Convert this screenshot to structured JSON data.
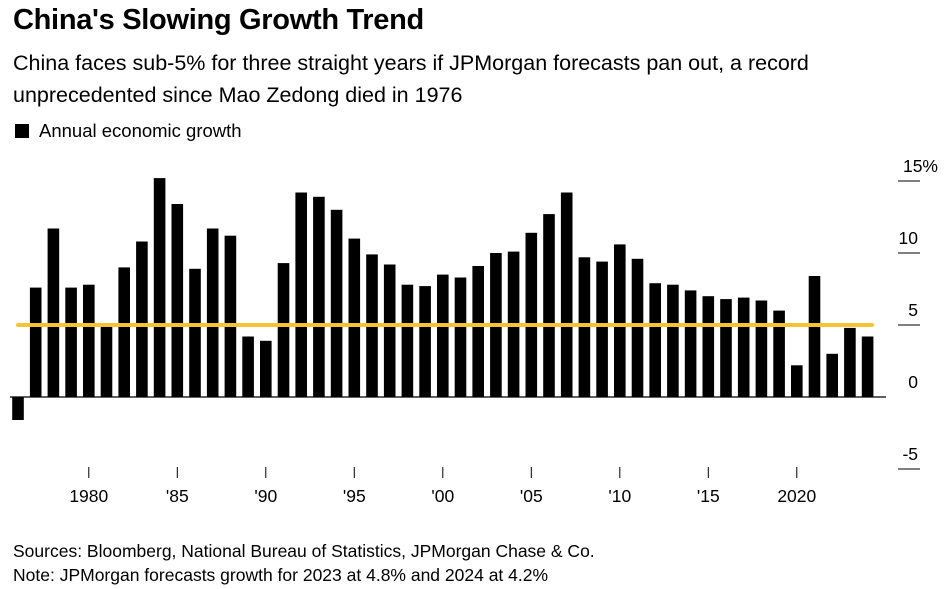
{
  "header": {
    "title": "China's Slowing Growth Trend",
    "subtitle": "China faces sub-5% for three straight years if JPMorgan forecasts pan out, a record unprecedented since Mao Zedong died in 1976"
  },
  "legend": {
    "label": "Annual economic growth"
  },
  "footer": {
    "sources": "Sources: Bloomberg, National Bureau of Statistics, JPMorgan Chase & Co.",
    "note": "Note: JPMorgan forecasts growth for 2023 at 4.8% and 2024 at 4.2%"
  },
  "chart_data": {
    "type": "bar",
    "x": [
      1976,
      1977,
      1978,
      1979,
      1980,
      1981,
      1982,
      1983,
      1984,
      1985,
      1986,
      1987,
      1988,
      1989,
      1990,
      1991,
      1992,
      1993,
      1994,
      1995,
      1996,
      1997,
      1998,
      1999,
      2000,
      2001,
      2002,
      2003,
      2004,
      2005,
      2006,
      2007,
      2008,
      2009,
      2010,
      2011,
      2012,
      2013,
      2014,
      2015,
      2016,
      2017,
      2018,
      2019,
      2020,
      2021,
      2022,
      2023,
      2024
    ],
    "values": [
      -1.6,
      7.6,
      11.7,
      7.6,
      7.8,
      5.1,
      9.0,
      10.8,
      15.2,
      13.4,
      8.9,
      11.7,
      11.2,
      4.2,
      3.9,
      9.3,
      14.2,
      13.9,
      13.0,
      11.0,
      9.9,
      9.2,
      7.8,
      7.7,
      8.5,
      8.3,
      9.1,
      10.0,
      10.1,
      11.4,
      12.7,
      14.2,
      9.7,
      9.4,
      10.6,
      9.6,
      7.9,
      7.8,
      7.4,
      7.0,
      6.8,
      6.9,
      6.7,
      6.0,
      2.2,
      8.4,
      3.0,
      4.8,
      4.2
    ],
    "reference_line": {
      "value": 5,
      "color": "#f5c436"
    },
    "bar_color": "#000000",
    "y_ticks": [
      "15%",
      "10",
      "5",
      "0",
      "-5"
    ],
    "y_tick_values": [
      15,
      10,
      5,
      0,
      -5
    ],
    "x_ticks": [
      "1980",
      "'85",
      "'90",
      "'95",
      "'00",
      "'05",
      "'10",
      "'15",
      "2020"
    ],
    "x_tick_values": [
      1980,
      1985,
      1990,
      1995,
      2000,
      2005,
      2010,
      2015,
      2020
    ],
    "ylim": [
      -5,
      15
    ],
    "y_axis_position": "right",
    "grid": false
  }
}
